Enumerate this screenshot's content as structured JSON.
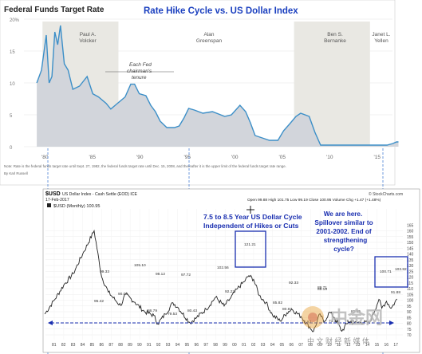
{
  "top": {
    "title": "Federal Funds Target Rate",
    "headline": "Rate Hike Cycle vs. US Dollar Index",
    "yticks": [
      "20%",
      "15",
      "10",
      "5",
      "0"
    ],
    "xticks": [
      "'80",
      "'85",
      "'90",
      "'95",
      "'00",
      "'05",
      "'10",
      "'15"
    ],
    "chairs": [
      {
        "name": "Paul A.",
        "name2": "Volcker"
      },
      {
        "name": "Alan",
        "name2": "Greenspan"
      },
      {
        "name": "Ben S.",
        "name2": "Bernanke"
      },
      {
        "name": "Janet L.",
        "name2": "Yellen"
      }
    ],
    "annotation": [
      "Each Fed",
      "chairman's",
      "tenure"
    ],
    "note": "Note: Rate is the federal funds target rate until Sept. 27, 1982, the federal funds target rate until Dec. 15, 2008, and thereafter it is the upper limit of the federal funds target rate range.",
    "credit": "By Karl Russell"
  },
  "bottom": {
    "symbol": "$USD",
    "symbol_desc": "US Dollar Index - Cash Settle (EOD) ICE",
    "date": "17-Feb-2017",
    "legend": "$USD (Monthly) 100.95",
    "ohlc": "Open 99.88  High 101.75  Low 99.19  Close 100.95  Volume  Chg +1.47 (+1.48%)",
    "source": "© StockCharts.com",
    "callout1": [
      "7.5 to 8.5 Year US Dollar Cycle",
      "Independent of Hikes or Cuts"
    ],
    "callout2": [
      "We are here.",
      "Spillover similar to",
      "2001-2002. End of",
      "strengthening",
      "cycle?"
    ],
    "yticks": [
      "165",
      "160",
      "155",
      "150",
      "145",
      "140",
      "135",
      "130",
      "125",
      "120",
      "115",
      "110",
      "105",
      "100",
      "95",
      "90",
      "85",
      "80",
      "75",
      "70"
    ],
    "xticks": [
      "81",
      "82",
      "83",
      "84",
      "85",
      "86",
      "87",
      "88",
      "89",
      "90",
      "91",
      "92",
      "93",
      "94",
      "95",
      "96",
      "97",
      "98",
      "99",
      "00",
      "01",
      "02",
      "03",
      "04",
      "05",
      "06",
      "07",
      "08",
      "09",
      "10",
      "11",
      "12",
      "13",
      "14",
      "15",
      "16",
      "17"
    ],
    "labels": [
      "99.33",
      "105.10",
      "98.12",
      "97.72",
      "102.56",
      "121.21",
      "92.33",
      "89.71",
      "100.71",
      "103.82",
      "95.42",
      "90.06",
      "86.79",
      "79.53",
      "80.43",
      "92.22",
      "85.82",
      "80.83",
      "88.19",
      "81.55",
      "72.93",
      "91.88",
      "75.45",
      "73.18"
    ]
  },
  "watermark": {
    "brand": "中金网",
    "tagline": "中 文 财 经 新 媒 体"
  },
  "chart_data": [
    {
      "type": "line",
      "title": "Federal Funds Target Rate",
      "ylim": [
        0,
        20
      ],
      "x": [
        1979.0,
        1979.5,
        1980.0,
        1980.3,
        1980.6,
        1980.9,
        1981.2,
        1981.5,
        1981.9,
        1982.3,
        1982.8,
        1983.5,
        1984.3,
        1984.9,
        1985.5,
        1986.3,
        1986.8,
        1987.5,
        1988.3,
        1988.9,
        1989.3,
        1989.8,
        1990.5,
        1991.0,
        1991.5,
        1992.0,
        1992.7,
        1993.5,
        1994.0,
        1994.5,
        1995.0,
        1995.6,
        1996.5,
        1997.5,
        1998.8,
        1999.5,
        2000.4,
        2001.0,
        2001.5,
        2002.0,
        2003.0,
        2003.5,
        2004.4,
        2005.0,
        2005.6,
        2006.3,
        2006.8,
        2007.7,
        2008.3,
        2008.9,
        2012.0,
        2015.9,
        2016.5,
        2016.9,
        2017.1
      ],
      "y": [
        10.0,
        12.0,
        17.5,
        10.0,
        11.0,
        18.0,
        16.0,
        19.0,
        13.0,
        12.0,
        9.0,
        9.5,
        11.0,
        8.3,
        7.8,
        6.8,
        5.9,
        6.8,
        7.8,
        9.8,
        9.8,
        8.3,
        8.0,
        6.5,
        5.5,
        4.0,
        3.0,
        3.0,
        3.25,
        4.5,
        6.0,
        5.75,
        5.25,
        5.5,
        4.75,
        5.0,
        6.5,
        5.5,
        3.75,
        1.75,
        1.25,
        1.0,
        1.0,
        2.5,
        3.5,
        4.75,
        5.25,
        4.75,
        2.25,
        0.25,
        0.25,
        0.25,
        0.5,
        0.75,
        0.75
      ]
    },
    {
      "type": "line",
      "title": "$USD (Monthly) 100.95",
      "ylim": [
        70,
        165
      ],
      "x": [
        1980.0,
        1981.0,
        1982.0,
        1983.0,
        1984.0,
        1985.2,
        1986.0,
        1986.7,
        1987.5,
        1988.0,
        1988.5,
        1989.5,
        1990.5,
        1991.5,
        1991.9,
        1992.7,
        1993.5,
        1994.0,
        1995.3,
        1996.0,
        1997.0,
        1998.0,
        1998.9,
        1999.5,
        2000.3,
        2001.0,
        2001.5,
        2002.0,
        2002.6,
        2003.3,
        2004.0,
        2004.8,
        2005.5,
        2006.0,
        2007.0,
        2008.3,
        2009.0,
        2009.4,
        2010.0,
        2010.5,
        2011.3,
        2012.0,
        2012.6,
        2013.3,
        2014.2,
        2015.2,
        2015.5,
        2016.0,
        2016.5,
        2017.1
      ],
      "y": [
        88,
        100,
        113,
        123,
        140,
        160,
        120,
        107,
        99.33,
        95.42,
        105.1,
        98.12,
        90.06,
        86.79,
        79.53,
        88,
        97.72,
        94,
        80.43,
        85,
        92.22,
        102.56,
        95,
        101,
        110,
        116,
        121.21,
        118,
        104,
        98,
        87,
        82,
        89,
        92.33,
        85.82,
        72.93,
        88.19,
        80.83,
        89.71,
        85,
        73.18,
        81.55,
        80,
        81,
        80,
        100.71,
        93,
        99,
        93,
        100.95
      ]
    }
  ]
}
